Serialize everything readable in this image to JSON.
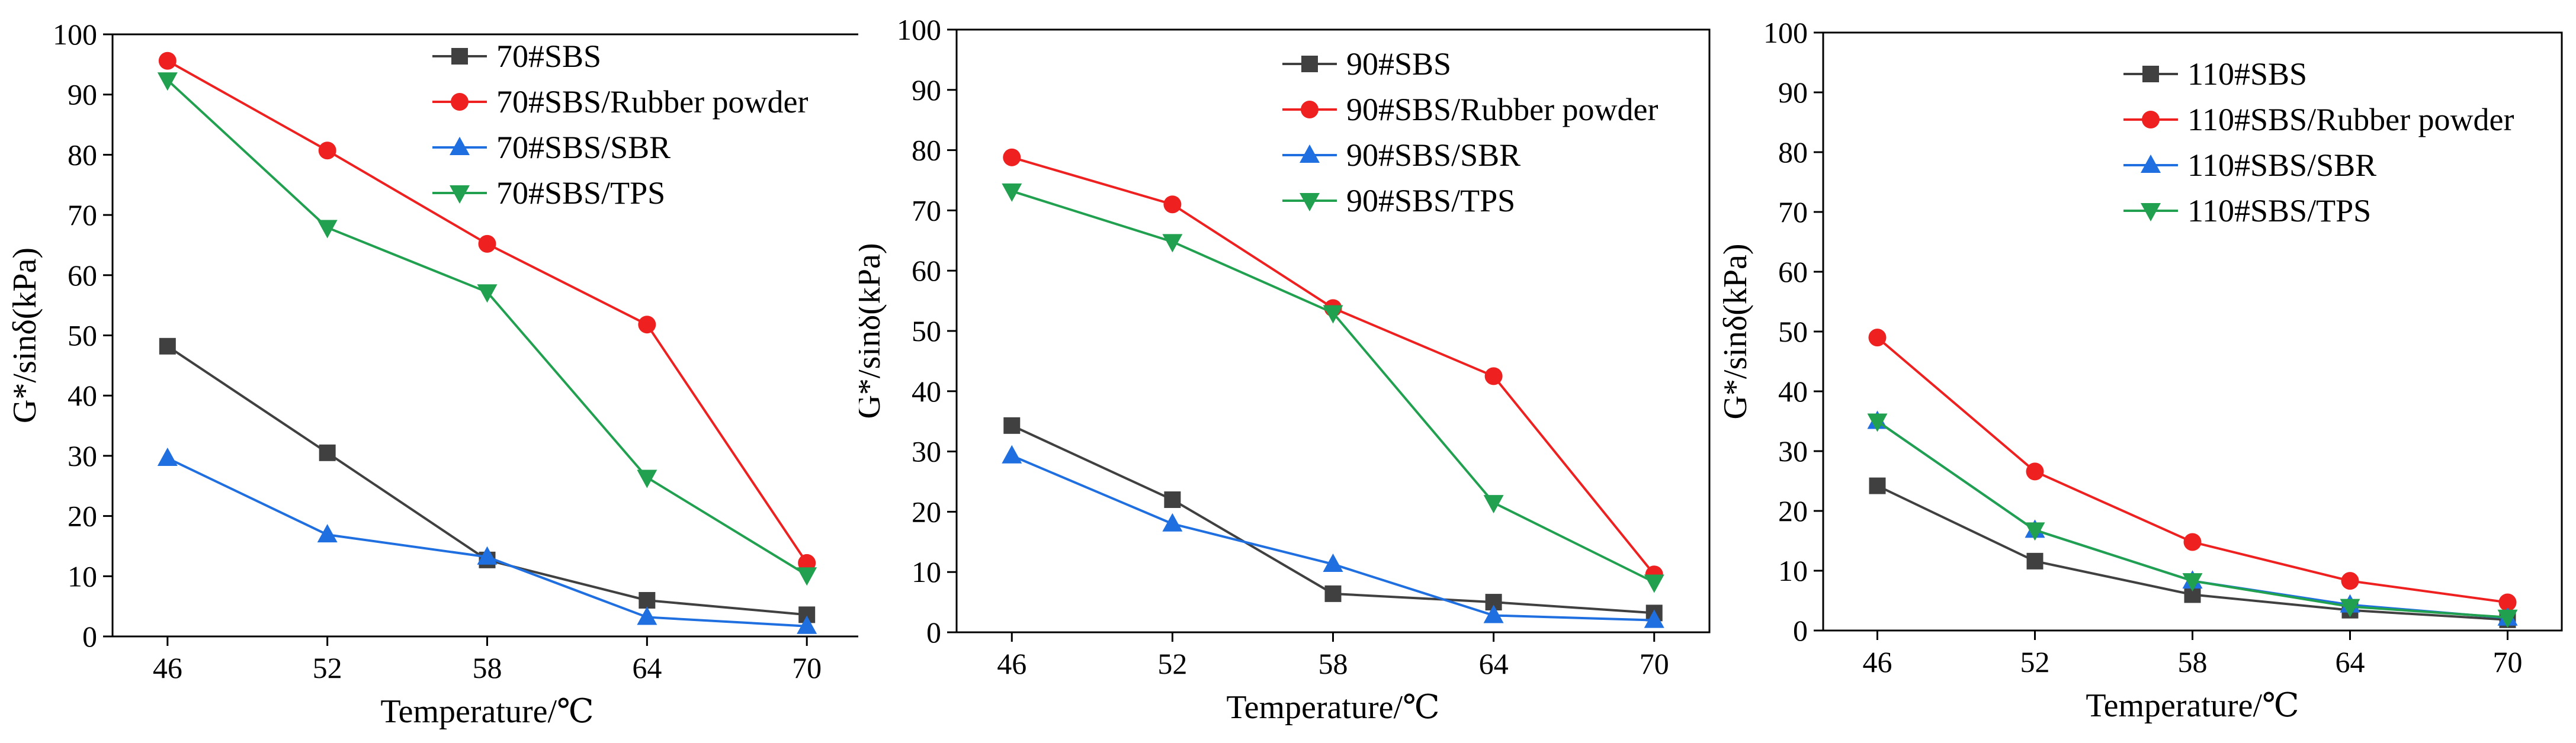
{
  "series_colors": {
    "sbs": "#404040",
    "rubber": "#ee2020",
    "sbr": "#1f6fe0",
    "tps": "#21a050"
  },
  "chart_data": [
    {
      "type": "line",
      "title": "",
      "xlabel": "Temperature/℃",
      "ylabel": "G*/sinδ(kPa)",
      "x": [
        46,
        52,
        58,
        64,
        70
      ],
      "x_tick_labels": [
        "46",
        "52",
        "58",
        "64",
        "70"
      ],
      "ylim": [
        0,
        100
      ],
      "y_ticks": [
        0,
        10,
        20,
        30,
        40,
        50,
        60,
        70,
        80,
        90,
        100
      ],
      "y_tick_labels": [
        "0",
        "10",
        "20",
        "30",
        "40",
        "50",
        "60",
        "70",
        "80",
        "90",
        "100"
      ],
      "legend_position": "top-right",
      "series": [
        {
          "key": "sbs",
          "name": "70#SBS",
          "marker": "square",
          "values": [
            48.2,
            30.5,
            12.7,
            6.0,
            3.6
          ]
        },
        {
          "key": "rubber",
          "name": "70#SBS/Rubber powder",
          "marker": "circle",
          "values": [
            95.6,
            80.7,
            65.2,
            51.8,
            12.2
          ]
        },
        {
          "key": "sbr",
          "name": "70#SBS/SBR",
          "marker": "triangle-up",
          "values": [
            29.6,
            16.9,
            13.2,
            3.2,
            1.7
          ]
        },
        {
          "key": "tps",
          "name": "70#SBS/TPS",
          "marker": "triangle-down",
          "values": [
            92.4,
            67.9,
            57.2,
            26.4,
            10.2
          ]
        }
      ]
    },
    {
      "type": "line",
      "title": "",
      "xlabel": "Temperature/℃",
      "ylabel": "G*/sinδ(kPa)",
      "x": [
        46,
        52,
        58,
        64,
        70
      ],
      "x_tick_labels": [
        "46",
        "52",
        "58",
        "64",
        "70"
      ],
      "ylim": [
        0,
        100
      ],
      "y_ticks": [
        0,
        10,
        20,
        30,
        40,
        50,
        60,
        70,
        80,
        90,
        100
      ],
      "y_tick_labels": [
        "0",
        "10",
        "20",
        "30",
        "40",
        "50",
        "60",
        "70",
        "80",
        "90",
        "100"
      ],
      "legend_position": "top-right",
      "series": [
        {
          "key": "sbs",
          "name": "90#SBS",
          "marker": "square",
          "values": [
            34.3,
            22.0,
            6.4,
            5.0,
            3.2
          ]
        },
        {
          "key": "rubber",
          "name": "90#SBS/Rubber powder",
          "marker": "circle",
          "values": [
            78.8,
            71.0,
            53.8,
            42.5,
            9.6
          ]
        },
        {
          "key": "sbr",
          "name": "90#SBS/SBR",
          "marker": "triangle-up",
          "values": [
            29.3,
            18.0,
            11.3,
            2.8,
            2.0
          ]
        },
        {
          "key": "tps",
          "name": "90#SBS/TPS",
          "marker": "triangle-down",
          "values": [
            73.2,
            64.8,
            53.0,
            21.5,
            8.3
          ]
        }
      ]
    },
    {
      "type": "line",
      "title": "",
      "xlabel": "Temperature/℃",
      "ylabel": "G*/sinδ(kPa)",
      "x": [
        46,
        52,
        58,
        64,
        70
      ],
      "x_tick_labels": [
        "46",
        "52",
        "58",
        "64",
        "70"
      ],
      "ylim": [
        0,
        100
      ],
      "y_ticks": [
        0,
        10,
        20,
        30,
        40,
        50,
        60,
        70,
        80,
        90,
        100
      ],
      "y_tick_labels": [
        "0",
        "10",
        "20",
        "30",
        "40",
        "50",
        "60",
        "70",
        "80",
        "90",
        "100"
      ],
      "legend_position": "top-right",
      "series": [
        {
          "key": "sbs",
          "name": "110#SBS",
          "marker": "square",
          "values": [
            24.2,
            11.6,
            6.0,
            3.4,
            1.8
          ]
        },
        {
          "key": "rubber",
          "name": "110#SBS/Rubber powder",
          "marker": "circle",
          "values": [
            49.0,
            26.6,
            14.8,
            8.3,
            4.7
          ]
        },
        {
          "key": "sbr",
          "name": "110#SBS/SBR",
          "marker": "triangle-up",
          "values": [
            35.0,
            16.8,
            8.3,
            4.3,
            2.1
          ]
        },
        {
          "key": "tps",
          "name": "110#SBS/TPS",
          "marker": "triangle-down",
          "values": [
            35.0,
            16.8,
            8.3,
            4.0,
            2.2
          ]
        }
      ]
    }
  ]
}
